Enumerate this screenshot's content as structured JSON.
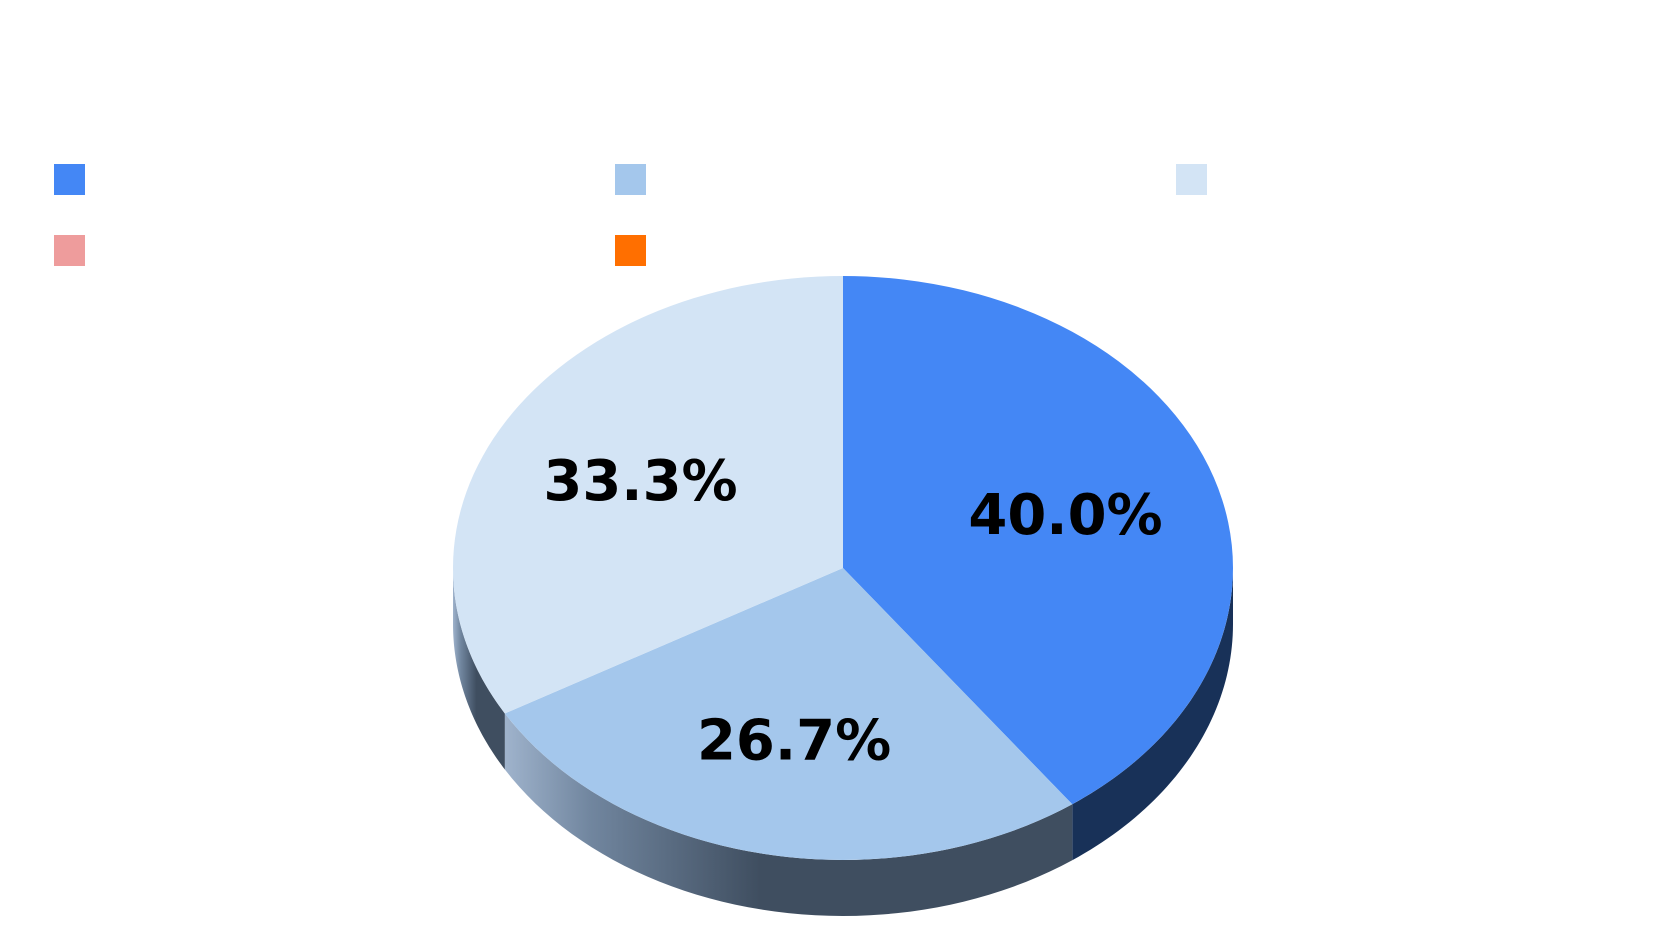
{
  "chart_data": {
    "type": "pie",
    "style": "3d",
    "title": "",
    "slices": [
      {
        "label": "40.0%",
        "value": 40.0,
        "color": "#4487F5"
      },
      {
        "label": "26.7%",
        "value": 26.7,
        "color": "#A4C7EC"
      },
      {
        "label": "33.3%",
        "value": 33.3,
        "color": "#D3E4F5"
      }
    ],
    "legend": {
      "placement": "top",
      "entries": [
        {
          "name": "",
          "color": "#4487F5"
        },
        {
          "name": "",
          "color": "#A4C7EC"
        },
        {
          "name": "",
          "color": "#D3E4F5"
        },
        {
          "name": "",
          "color": "#EE9C9C"
        },
        {
          "name": "",
          "color": "#FF6F00"
        }
      ]
    }
  }
}
